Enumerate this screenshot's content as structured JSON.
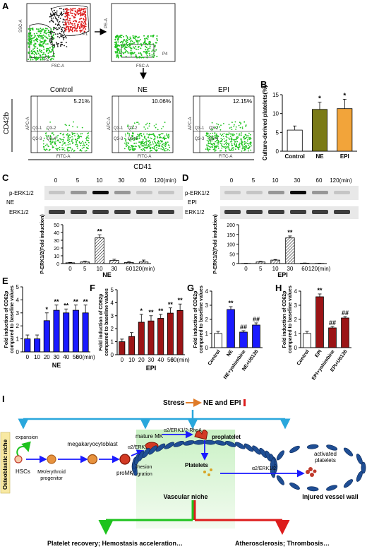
{
  "panels": {
    "A": {
      "label": "A",
      "gate_labels": [
        "P1",
        "P2",
        "P4"
      ],
      "axis_labels": {
        "ssc": "SSC-A",
        "fsc": "FSC-A",
        "pe": "PE-A",
        "apc": "APC-A",
        "fitc": "FITC-A"
      },
      "quadrant_labels": [
        "Q3-1",
        "Q3-2",
        "Q3-3",
        "Q3-4"
      ],
      "plots": [
        {
          "title": "Control",
          "percent": "5.21%"
        },
        {
          "title": "NE",
          "percent": "10.06%"
        },
        {
          "title": "EPI",
          "percent": "12.15%"
        }
      ],
      "y_label": "CD42b",
      "x_label": "CD41"
    },
    "C": {
      "label": "C",
      "treatment": "NE"
    },
    "D": {
      "label": "D",
      "treatment": "EPI"
    },
    "E": {
      "label": "E"
    },
    "F": {
      "label": "F"
    },
    "G": {
      "label": "G"
    },
    "H": {
      "label": "H"
    },
    "I": {
      "label": "I",
      "stress": "Stress",
      "ne_epi": "NE and EPI",
      "niche": "Osteoblastic niche",
      "expansion": "expansion",
      "hscs": "HSCs",
      "mk_prog_1": "MK/erythroid",
      "mk_prog_2": "progenitor",
      "megakaryocytoblast": "megakaryocytoblast",
      "promk": "proMK",
      "mature_mk": "mature MK",
      "pathway1": "α2/ERK1/2",
      "adhesion": "adhesion",
      "migration": "migration",
      "pathway2": "α2/ERK1/2-RhoA",
      "proplatelet": "proplatelet",
      "platelets": "Platelets",
      "pathway3": "α2/ERK1/2",
      "activated_1": "activated",
      "activated_2": "platelets",
      "vascular_niche": "Vascular niche",
      "injured": "Injured vessel wall",
      "outcome_left": "Platelet recovery; Hemostasis acceleration…",
      "outcome_right": "Atherosclerosis; Thrombosis…"
    }
  },
  "colors": {
    "green": "#1ec31e",
    "red": "#dd1c1c",
    "blue": "#1a1aff",
    "darkred": "#9b1416",
    "olive": "#7a7a16",
    "orange": "#f2a43a",
    "cyan": "#2aa7dc",
    "arrow_orange": "#e07b28"
  },
  "chart_data": [
    {
      "panel": "B",
      "type": "bar",
      "ylabel": "Culture-derived platelets(%)",
      "categories": [
        "Control",
        "NE",
        "EPI"
      ],
      "values": [
        5.6,
        11.1,
        11.3
      ],
      "errors": [
        1.1,
        1.9,
        2.5
      ],
      "stars": [
        "",
        "*",
        "*"
      ],
      "colors": [
        "#ffffff",
        "#7a7a16",
        "#f2a43a"
      ],
      "ylim": [
        0,
        15
      ],
      "yticks": [
        0,
        5,
        10,
        15
      ]
    },
    {
      "panel": "C",
      "type": "bar",
      "blot_labels": [
        "p-ERK1/2",
        "ERK1/2"
      ],
      "timepoints": [
        "0",
        "5",
        "10",
        "30",
        "60",
        "120(min)"
      ],
      "ylabel": "P-ERK1/2(Fold induction)",
      "xlabel": "NE",
      "categories": [
        "0",
        "5",
        "10",
        "30",
        "60",
        "120(min)"
      ],
      "values": [
        1,
        2,
        33,
        4,
        1.5,
        2
      ],
      "errors": [
        0.5,
        1,
        4,
        1.5,
        1,
        2.5
      ],
      "stars": [
        "",
        "",
        "**",
        "",
        "",
        ""
      ],
      "ylim": [
        0,
        50
      ],
      "yticks": [
        0,
        10,
        20,
        30,
        40,
        50
      ]
    },
    {
      "panel": "D",
      "type": "bar",
      "blot_labels": [
        "p-ERK1/2",
        "ERK1/2"
      ],
      "timepoints": [
        "0",
        "5",
        "10",
        "30",
        "60",
        "120(min)"
      ],
      "ylabel": "P-ERK1/2(Fold induction)",
      "xlabel": "EPI",
      "categories": [
        "0",
        "5",
        "10",
        "30",
        "60",
        "120(min)"
      ],
      "values": [
        1,
        8,
        18,
        132,
        2,
        1
      ],
      "errors": [
        1,
        3,
        3,
        10,
        1,
        1
      ],
      "stars": [
        "",
        "",
        "",
        "**",
        "",
        ""
      ],
      "ylim": [
        0,
        200
      ],
      "yticks": [
        0,
        50,
        100,
        150,
        200
      ]
    },
    {
      "panel": "E",
      "type": "bar",
      "ylabel": "Fold induction of CD62p compared to baseline values",
      "xlabel": "NE",
      "categories": [
        "0",
        "10",
        "20",
        "30",
        "40",
        "50",
        "60(min)"
      ],
      "values": [
        1.0,
        1.0,
        2.4,
        3.2,
        3.0,
        3.2,
        3.0
      ],
      "errors": [
        0.3,
        0.3,
        0.6,
        0.4,
        0.3,
        0.4,
        0.6
      ],
      "stars": [
        "",
        "",
        "*",
        "**",
        "**",
        "**",
        "**"
      ],
      "ylim": [
        0,
        5
      ],
      "yticks": [
        0,
        1,
        2,
        3,
        4,
        5
      ]
    },
    {
      "panel": "F",
      "type": "bar",
      "ylabel": "Fold induction of CD62p compared to baseline values",
      "xlabel": "EPI",
      "categories": [
        "0",
        "10",
        "20",
        "30",
        "40",
        "50",
        "60(min)"
      ],
      "values": [
        1.0,
        1.4,
        2.5,
        2.6,
        2.8,
        3.2,
        3.4
      ],
      "errors": [
        0.2,
        0.3,
        0.6,
        0.4,
        0.3,
        0.4,
        0.5
      ],
      "stars": [
        "",
        "",
        "*",
        "**",
        "**",
        "**",
        "**"
      ],
      "ylim": [
        0,
        5
      ],
      "yticks": [
        0,
        1,
        2,
        3,
        4,
        5
      ]
    },
    {
      "panel": "G",
      "type": "bar",
      "ylabel": "Fold induction of CD62p compared to baseline values",
      "categories": [
        "Control",
        "NE",
        "NE+yohimbine",
        "NE+U0126"
      ],
      "values": [
        1.0,
        2.7,
        1.1,
        1.6
      ],
      "errors": [
        0.15,
        0.2,
        0.1,
        0.15
      ],
      "stars": [
        "",
        "**",
        "##",
        "##"
      ],
      "colors": [
        "#ffffff",
        "#1a1aff",
        "#1a1aff",
        "#1a1aff"
      ],
      "ylim": [
        0,
        4
      ],
      "yticks": [
        0,
        1,
        2,
        3,
        4
      ]
    },
    {
      "panel": "H",
      "type": "bar",
      "ylabel": "Fold induction of CD62p compared to baseline values",
      "categories": [
        "Control",
        "EPI",
        "EPI+yohimbine",
        "EPI+U0126"
      ],
      "values": [
        1.0,
        3.6,
        1.4,
        2.1
      ],
      "errors": [
        0.15,
        0.2,
        0.1,
        0.1
      ],
      "stars": [
        "",
        "**",
        "##",
        "##"
      ],
      "colors": [
        "#ffffff",
        "#9b1416",
        "#9b1416",
        "#9b1416"
      ],
      "ylim": [
        0,
        4
      ],
      "yticks": [
        0,
        1,
        2,
        3,
        4
      ]
    }
  ]
}
